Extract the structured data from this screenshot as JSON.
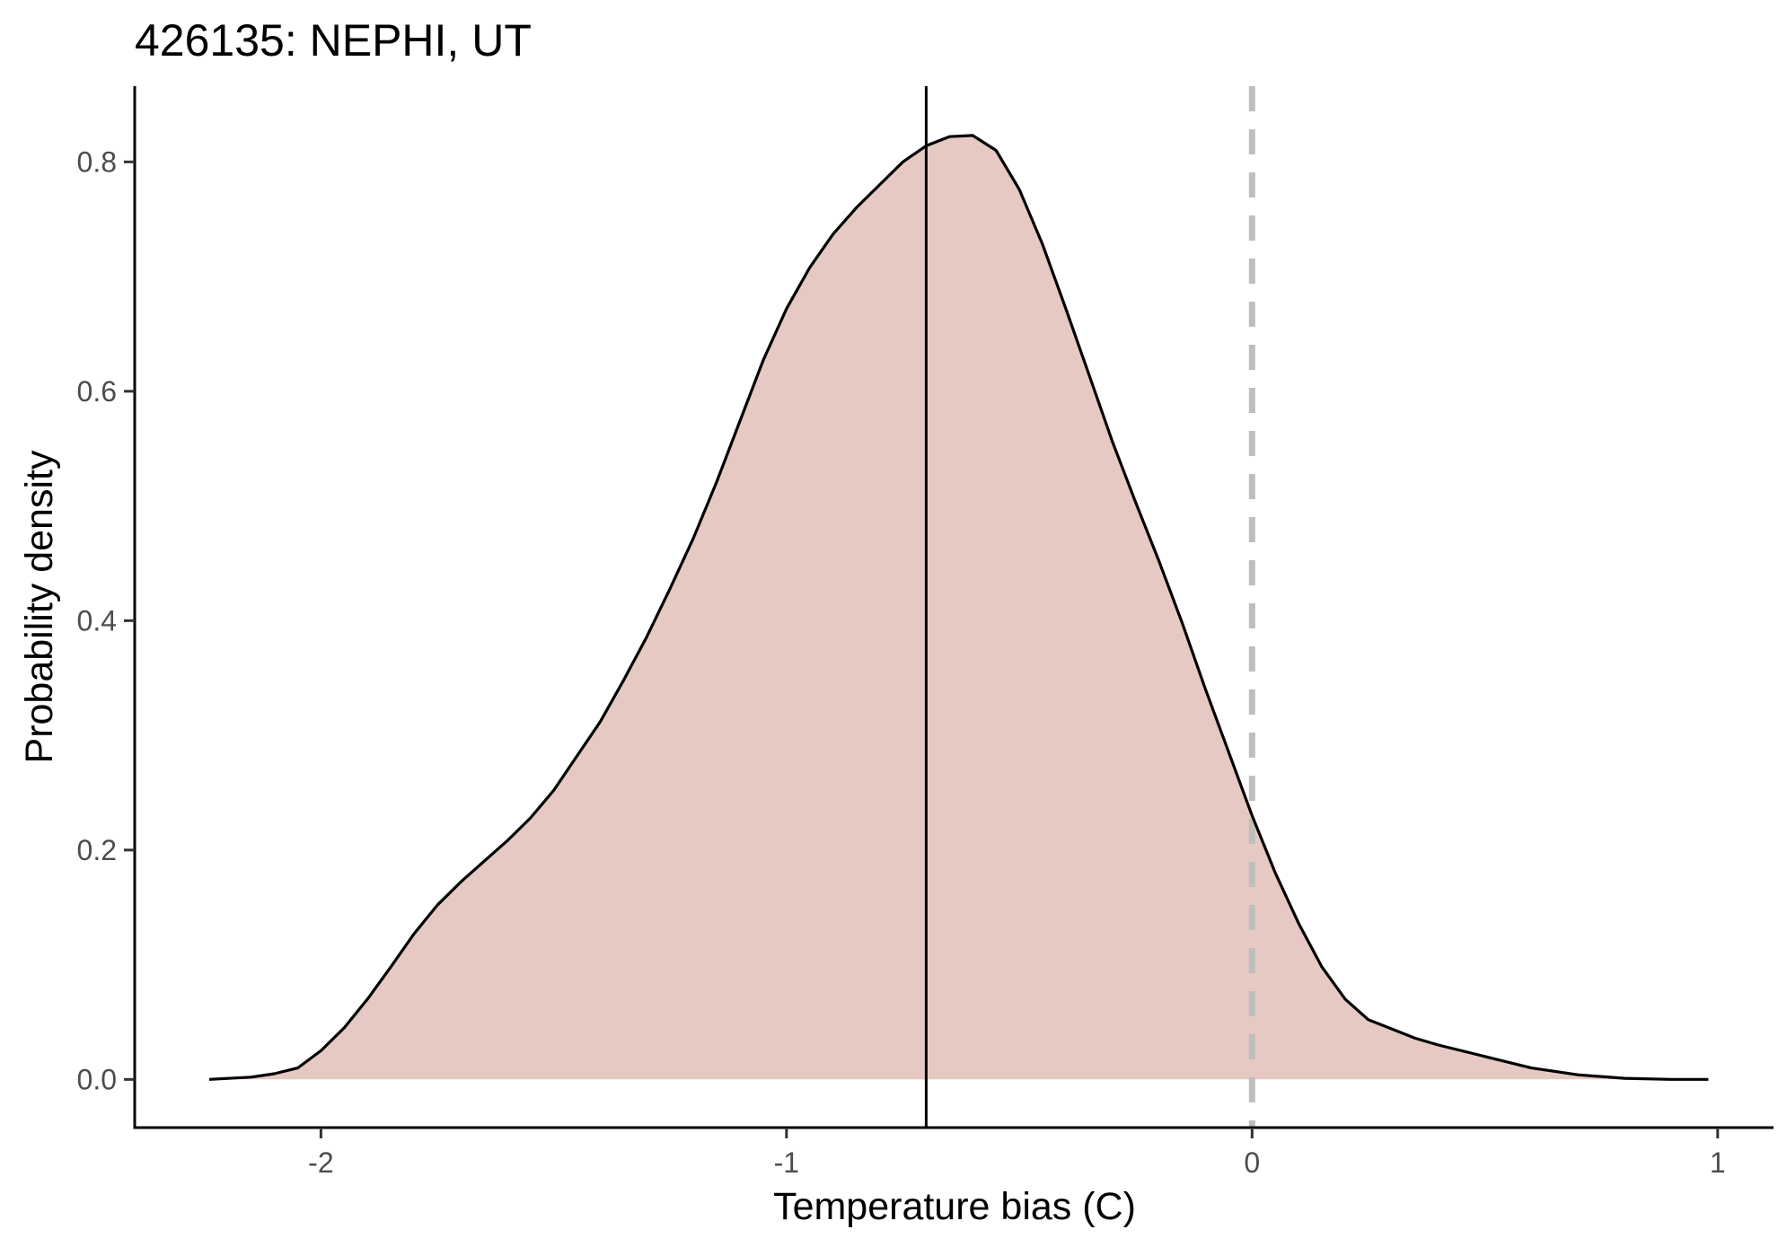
{
  "chart_data": {
    "type": "area",
    "title": "426135: NEPHI, UT",
    "xlabel": "Temperature bias (C)",
    "ylabel": "Probability density",
    "xlim": [
      -2.4,
      1.12
    ],
    "ylim": [
      -0.042,
      0.866
    ],
    "x_ticks": [
      -2,
      -1,
      0,
      1
    ],
    "x_tick_labels": [
      "-2",
      "-1",
      "0",
      "1"
    ],
    "y_ticks": [
      0.0,
      0.2,
      0.4,
      0.6,
      0.8
    ],
    "y_tick_labels": [
      "0.0",
      "0.2",
      "0.4",
      "0.6",
      "0.8"
    ],
    "grid": false,
    "legend": "none",
    "series": [
      {
        "x": [
          -2.24,
          -2.15,
          -2.1,
          -2.05,
          -2.0,
          -1.95,
          -1.9,
          -1.85,
          -1.8,
          -1.75,
          -1.7,
          -1.65,
          -1.6,
          -1.55,
          -1.5,
          -1.45,
          -1.4,
          -1.35,
          -1.3,
          -1.25,
          -1.2,
          -1.15,
          -1.1,
          -1.05,
          -1.0,
          -0.95,
          -0.9,
          -0.85,
          -0.8,
          -0.75,
          -0.7,
          -0.65,
          -0.6,
          -0.55,
          -0.5,
          -0.45,
          -0.4,
          -0.35,
          -0.3,
          -0.25,
          -0.2,
          -0.15,
          -0.1,
          -0.05,
          0.0,
          0.05,
          0.1,
          0.15,
          0.2,
          0.25,
          0.3,
          0.35,
          0.4,
          0.5,
          0.6,
          0.7,
          0.8,
          0.9,
          0.98
        ],
        "y": [
          0.0,
          0.002,
          0.005,
          0.01,
          0.025,
          0.045,
          0.07,
          0.098,
          0.127,
          0.152,
          0.172,
          0.19,
          0.208,
          0.228,
          0.252,
          0.282,
          0.312,
          0.348,
          0.386,
          0.428,
          0.472,
          0.521,
          0.574,
          0.627,
          0.672,
          0.708,
          0.737,
          0.76,
          0.78,
          0.8,
          0.814,
          0.822,
          0.823,
          0.81,
          0.776,
          0.728,
          0.672,
          0.614,
          0.556,
          0.503,
          0.452,
          0.398,
          0.34,
          0.285,
          0.23,
          0.18,
          0.136,
          0.098,
          0.07,
          0.052,
          0.044,
          0.036,
          0.03,
          0.02,
          0.01,
          0.004,
          0.001,
          0.0,
          0.0
        ]
      }
    ],
    "vlines": [
      {
        "x": -0.7,
        "color": "#000000",
        "linetype": "solid"
      },
      {
        "x": 0.0,
        "color": "#bebebe",
        "linetype": "dashed"
      }
    ],
    "colors": {
      "fill": "#e5c9c2",
      "curve": "#000000"
    }
  }
}
